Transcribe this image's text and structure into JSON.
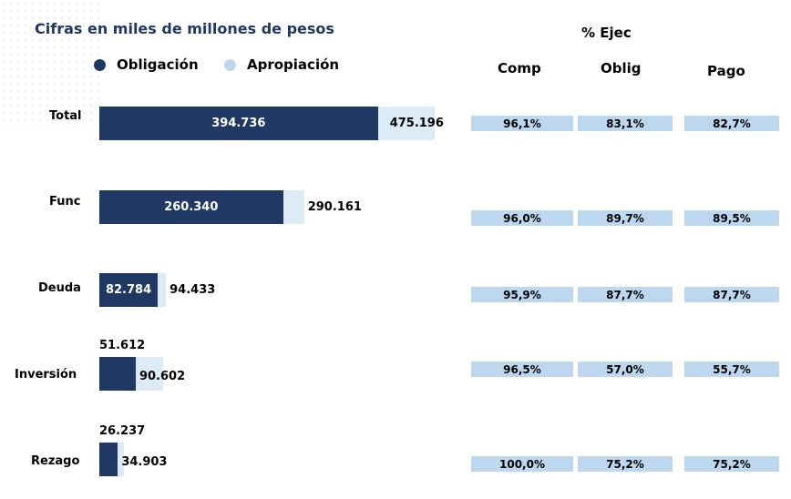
{
  "title": "Cifras en miles de millones de pesos",
  "legend": [
    {
      "label": "Obligación",
      "color": "#203864"
    },
    {
      "label": "Apropiación",
      "color": "#bdd7ee"
    }
  ],
  "pct_title": "% Ejec",
  "pct_columns": [
    "Comp",
    "Oblig",
    "Pago"
  ],
  "colors": {
    "obligacion": "#203864",
    "apropiacion": "#ddebf7",
    "pct_cell": "#bdd7ee",
    "title": "#1f3864"
  },
  "chart_data": {
    "type": "bar",
    "orientation": "horizontal",
    "title": "Cifras en miles de millones de pesos",
    "categories": [
      "Total",
      "Func",
      "Deuda",
      "Inversión",
      "Rezago"
    ],
    "series": [
      {
        "name": "Obligación",
        "values": [
          394.736,
          260.34,
          82.784,
          51.612,
          26.237
        ],
        "labels": [
          "394.736",
          "260.340",
          "82.784",
          "51.612",
          "26.237"
        ]
      },
      {
        "name": "Apropiación",
        "values": [
          475.196,
          290.161,
          94.433,
          90.602,
          34.903
        ],
        "labels": [
          "475.196",
          "290.161",
          "94.433",
          "90.602",
          "34.903"
        ]
      }
    ],
    "percent_table": {
      "title": "% Ejec",
      "columns": [
        "Comp",
        "Oblig",
        "Pago"
      ],
      "rows": [
        {
          "category": "Total",
          "values": [
            "96,1%",
            "83,1%",
            "82,7%"
          ]
        },
        {
          "category": "Func",
          "values": [
            "96,0%",
            "89,7%",
            "89,5%"
          ]
        },
        {
          "category": "Deuda",
          "values": [
            "95,9%",
            "87,7%",
            "87,7%"
          ]
        },
        {
          "category": "Inversión",
          "values": [
            "96,5%",
            "57,0%",
            "55,7%"
          ]
        },
        {
          "category": "Rezago",
          "values": [
            "100,0%",
            "75,2%",
            "75,2%"
          ]
        }
      ]
    }
  }
}
